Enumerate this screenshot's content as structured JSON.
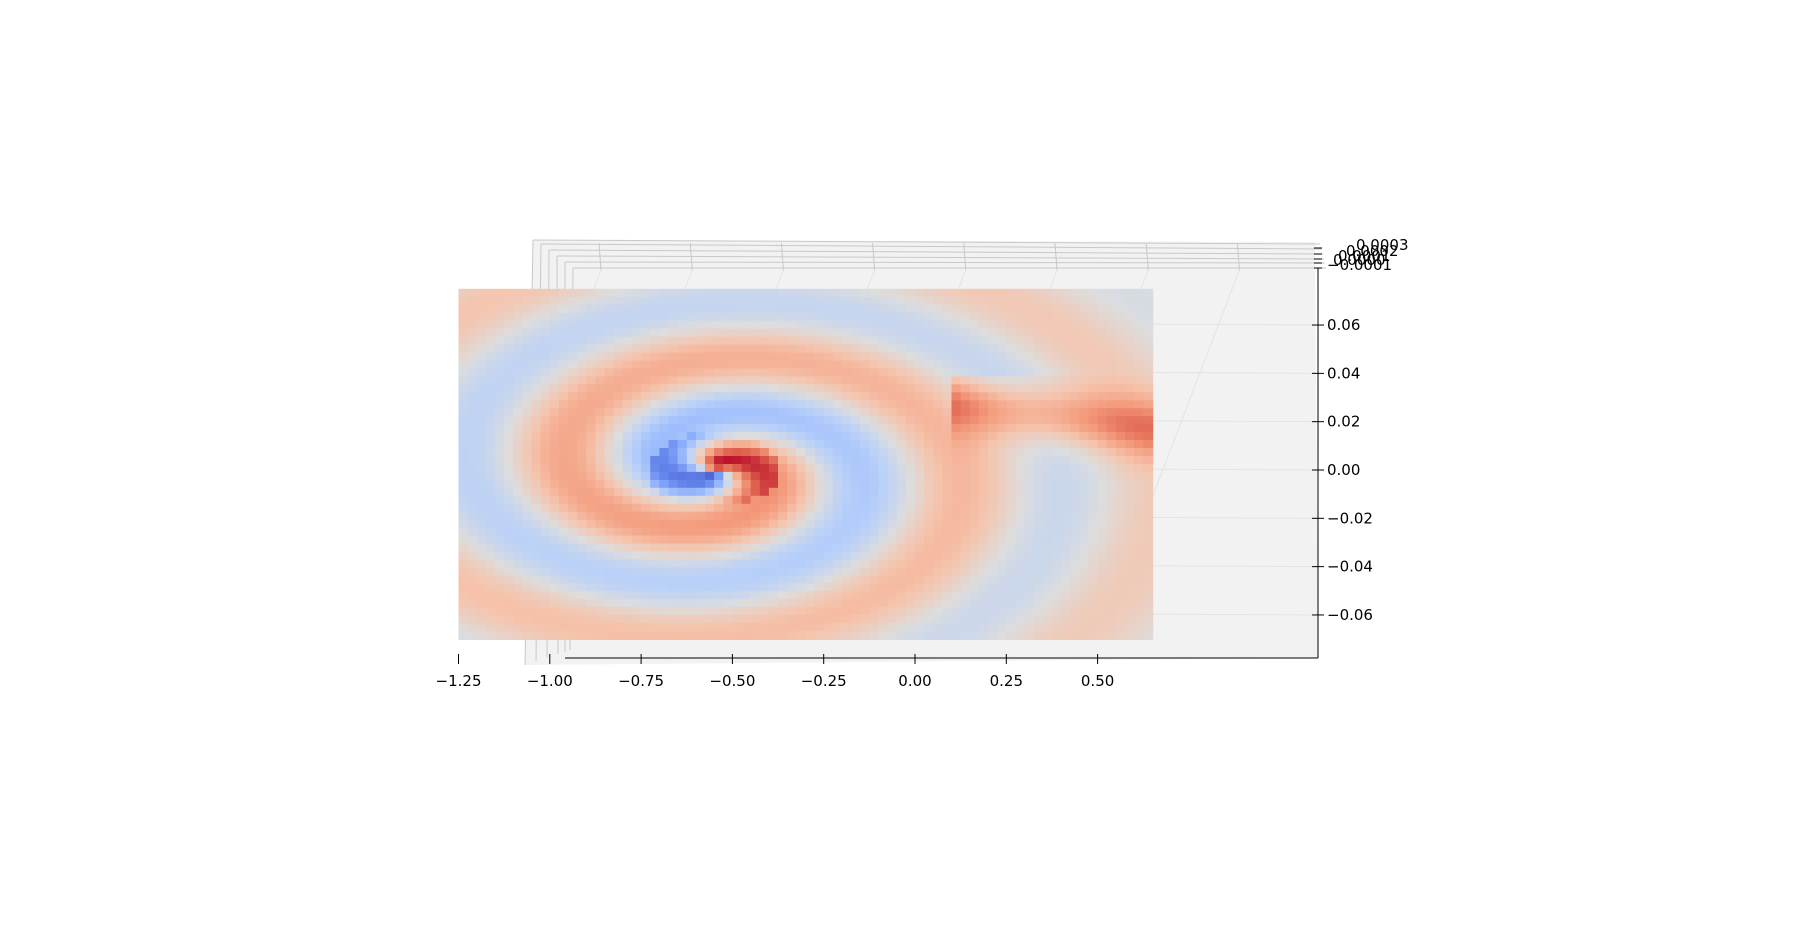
{
  "chart_data": {
    "type": "surface3d",
    "title": "",
    "xlabel": "",
    "ylabel": "",
    "zlabel": "",
    "grid": true,
    "colormap": "coolwarm",
    "xlim": [
      -1.3,
      0.7
    ],
    "ylim": [
      -0.075,
      0.075
    ],
    "x_ticks": [
      "−1.25",
      "−1.00",
      "−0.75",
      "−0.50",
      "−0.25",
      "0.00",
      "0.25",
      "0.50"
    ],
    "x_tick_values": [
      -1.25,
      -1.0,
      -0.75,
      -0.5,
      -0.25,
      0.0,
      0.25,
      0.5
    ],
    "y_ticks": [
      "0.06",
      "0.04",
      "0.02",
      "0.00",
      "−0.02",
      "−0.04",
      "−0.06"
    ],
    "y_tick_values": [
      0.06,
      0.04,
      0.02,
      0.0,
      -0.02,
      -0.04,
      -0.06
    ],
    "z_ticks": [
      "0.0003",
      "0.0002",
      "0.0001",
      "0.0000",
      "−0.0001"
    ],
    "surface": {
      "x_range": [
        -1.25,
        0.65
      ],
      "y_range": [
        -0.07,
        0.075
      ],
      "description": "spiral vortex field, positive (red) and negative (blue) arms around center near x=-0.55, y=0.0"
    }
  }
}
